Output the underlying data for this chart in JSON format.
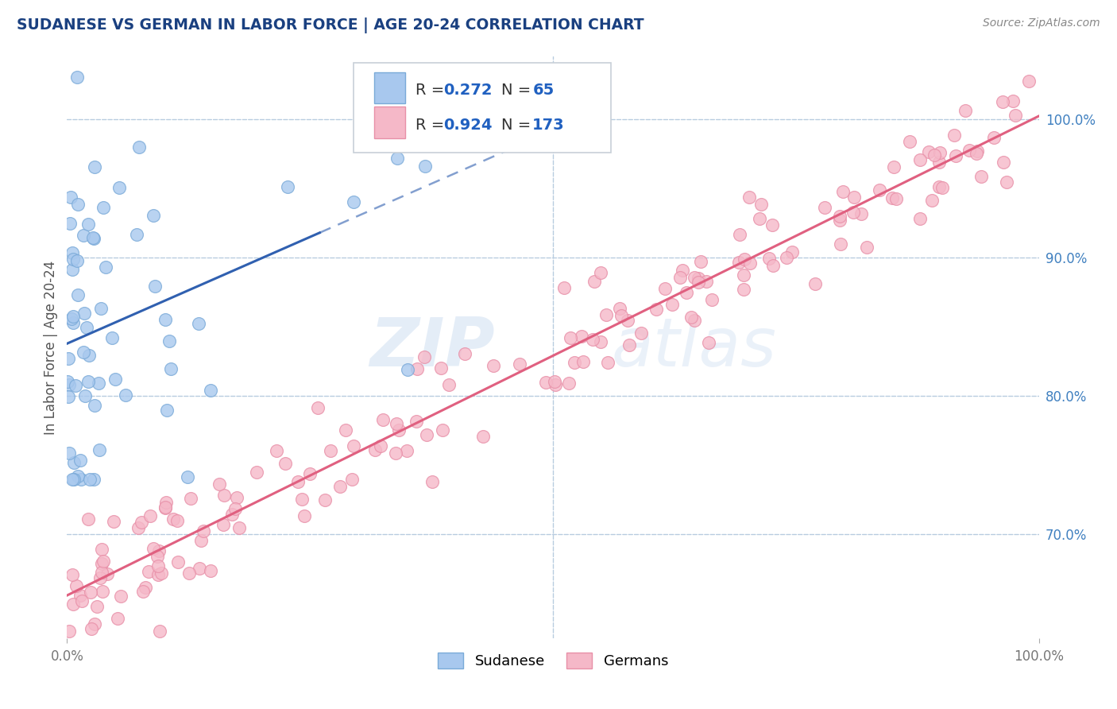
{
  "title": "SUDANESE VS GERMAN IN LABOR FORCE | AGE 20-24 CORRELATION CHART",
  "source_text": "Source: ZipAtlas.com",
  "ylabel": "In Labor Force | Age 20-24",
  "xlim": [
    0.0,
    1.0
  ],
  "ylim": [
    0.625,
    1.045
  ],
  "x_tick_labels": [
    "0.0%",
    "100.0%"
  ],
  "x_ticks": [
    0.0,
    1.0
  ],
  "y_tick_labels_right": [
    "70.0%",
    "80.0%",
    "90.0%",
    "100.0%"
  ],
  "y_ticks_right": [
    0.7,
    0.8,
    0.9,
    1.0
  ],
  "sudanese_color": "#a8c8ee",
  "sudanese_edge": "#7aaad8",
  "german_color": "#f5b8c8",
  "german_edge": "#e890a8",
  "sudanese_line_color": "#3060b0",
  "german_line_color": "#e06080",
  "R_sudanese": 0.272,
  "N_sudanese": 65,
  "R_german": 0.924,
  "N_german": 173,
  "watermark_zip": "ZIP",
  "watermark_atlas": "atlas",
  "background_color": "#ffffff",
  "grid_color": "#b8cce0",
  "title_color": "#1a4080",
  "legend_text_color": "#333333",
  "legend_stat_color": "#2060c0",
  "source_color": "#888888",
  "ylabel_color": "#555555",
  "xtick_color": "#777777",
  "ytick_right_color": "#4080c0"
}
